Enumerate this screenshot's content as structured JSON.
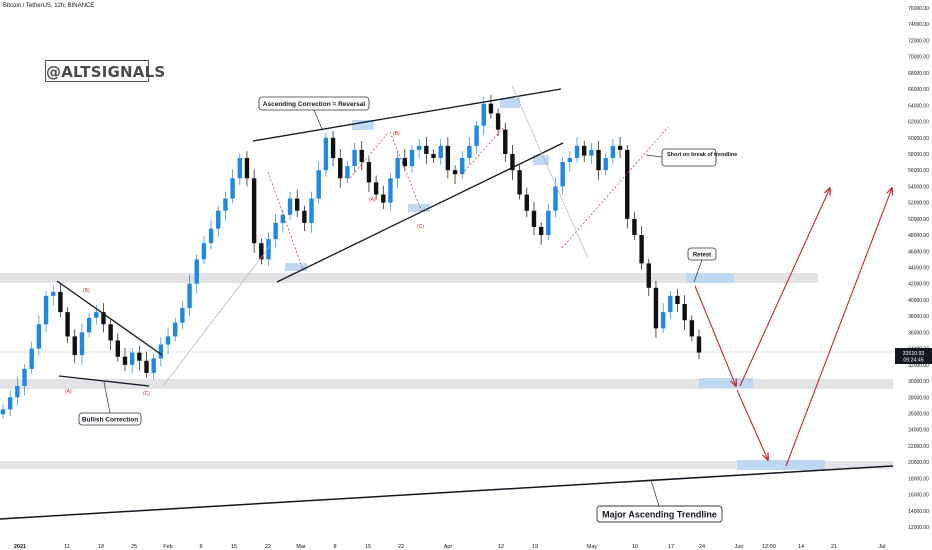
{
  "chart_header": {
    "symbol_title": "Bitcoin / TetherUS, 12h, BINANCE"
  },
  "watermark": "@ALTSIGNALS",
  "current_price_label": {
    "price": "33510.93",
    "countdown": "09:24:45"
  },
  "chart_data": {
    "type": "line",
    "title": "Bitcoin / TetherUS, 12h, BINANCE",
    "ylim": [
      12000,
      76000
    ],
    "y_tick_labels": [
      "12000.00",
      "14000.00",
      "16000.00",
      "18000.00",
      "20000.00",
      "22000.00",
      "24000.00",
      "26000.00",
      "28000.00",
      "30000.00",
      "32000.00",
      "34000.00",
      "36000.00",
      "38000.00",
      "40000.00",
      "42000.00",
      "44000.00",
      "46000.00",
      "48000.00",
      "50000.00",
      "52000.00",
      "54000.00",
      "56000.00",
      "58000.00",
      "60000.00",
      "62000.00",
      "64000.00",
      "66000.00",
      "68000.00",
      "70000.00",
      "72000.00",
      "74000.00",
      "76000.00"
    ],
    "x_tick_labels": [
      "2021",
      "11",
      "18",
      "25",
      "Feb",
      "8",
      "15",
      "22",
      "Mar",
      "8",
      "15",
      "22",
      "Apr",
      "12",
      "19",
      "May",
      "10",
      "17",
      "24",
      "Jun",
      "12:00",
      "14",
      "21",
      "Jul"
    ],
    "series": [
      {
        "values": [
          26500,
          28000,
          29400,
          31500,
          34000,
          37000,
          40500,
          41000,
          38500,
          35500,
          33200,
          36000,
          37800,
          38500,
          37000,
          35000,
          33000,
          32000,
          33500,
          32500,
          31000,
          32800,
          34500,
          35500,
          37200,
          39000,
          42000,
          45000,
          47000,
          48800,
          51000,
          52500,
          55000,
          57500,
          55000,
          47000,
          45000,
          47500,
          49500,
          50500,
          52500,
          51000,
          49500,
          52500,
          56000,
          60000,
          57500,
          55000,
          56500,
          58500,
          57000,
          54500,
          53000,
          52000,
          55000,
          57500,
          56500,
          58500,
          59000,
          58000,
          57500,
          59000,
          56000,
          55500,
          57500,
          59000,
          61500,
          64200,
          63000,
          61000,
          58000,
          56000,
          53000,
          51000,
          49000,
          48000,
          51000,
          54000,
          57000,
          57500,
          59000,
          57800,
          58500,
          56000,
          57500,
          59000,
          58500,
          50000,
          48000,
          44500,
          41500,
          36500,
          38500,
          40500,
          39500,
          37500,
          35500,
          33510
        ]
      }
    ],
    "annotations": [
      "Ascending Correction = Reversal",
      "Bullish Correction",
      "Short on break of trendline",
      "Retest",
      "Major Ascending Trendline",
      "(A)",
      "(B)",
      "(C)",
      "(A)",
      "(B)",
      "(C)"
    ],
    "horizontal_zones_price_ranges": [
      [
        42000,
        43200
      ],
      [
        29200,
        30400
      ],
      [
        19400,
        20400
      ]
    ],
    "projected_path_prices": [
      [
        41800,
        29700,
        53500
      ],
      [
        28500,
        20000,
        54000
      ]
    ],
    "grid": false
  }
}
